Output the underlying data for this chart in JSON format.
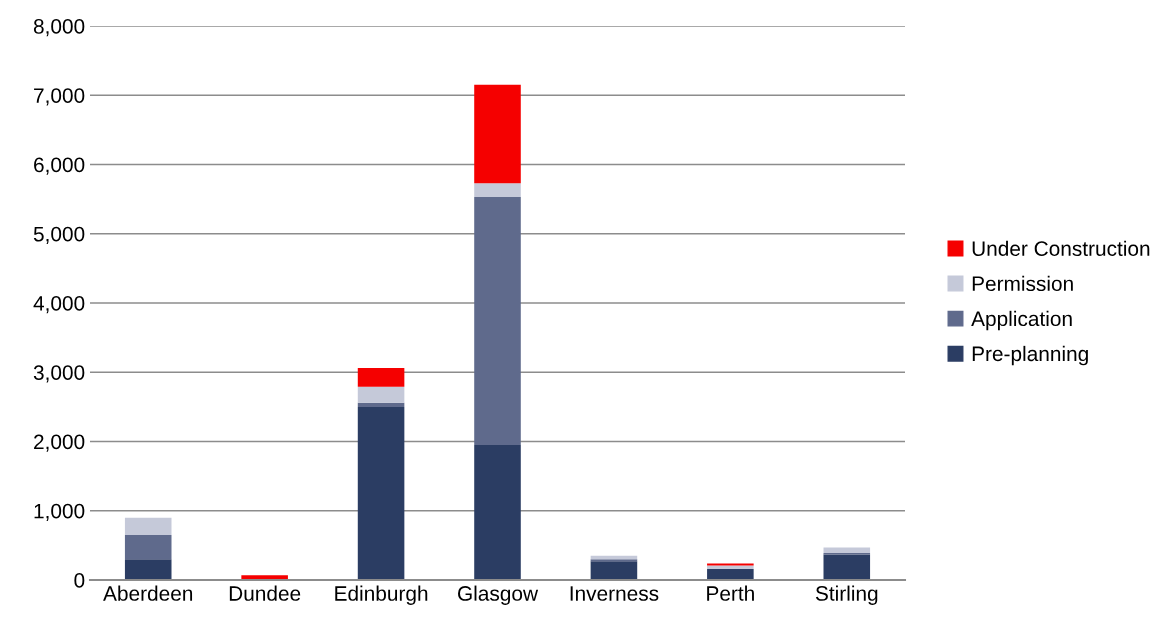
{
  "chart_data": {
    "type": "bar",
    "stacked": true,
    "categories": [
      "Aberdeen",
      "Dundee",
      "Edinburgh",
      "Glasgow",
      "Inverness",
      "Perth",
      "Stirling"
    ],
    "series": [
      {
        "name": "Pre-planning",
        "color": "#2b3d63",
        "values": [
          300,
          0,
          2500,
          1950,
          270,
          160,
          370
        ]
      },
      {
        "name": "Application",
        "color": "#5f6a8c",
        "values": [
          350,
          0,
          60,
          3580,
          30,
          0,
          20
        ]
      },
      {
        "name": "Permission",
        "color": "#c5c9d9",
        "values": [
          250,
          0,
          230,
          200,
          50,
          50,
          80
        ]
      },
      {
        "name": "Under Construction",
        "color": "#f50000",
        "values": [
          0,
          70,
          270,
          1420,
          0,
          30,
          0
        ]
      }
    ],
    "ylim": [
      0,
      8000
    ],
    "yticks": [
      {
        "value": 0,
        "label": "0"
      },
      {
        "value": 1000,
        "label": "1,000"
      },
      {
        "value": 2000,
        "label": "2,000"
      },
      {
        "value": 3000,
        "label": "3,000"
      },
      {
        "value": 4000,
        "label": "4,000"
      },
      {
        "value": 5000,
        "label": "5,000"
      },
      {
        "value": 6000,
        "label": "6,000"
      },
      {
        "value": 7000,
        "label": "7,000"
      },
      {
        "value": 8000,
        "label": "8,000"
      }
    ],
    "grid": "y",
    "legend": "right"
  }
}
